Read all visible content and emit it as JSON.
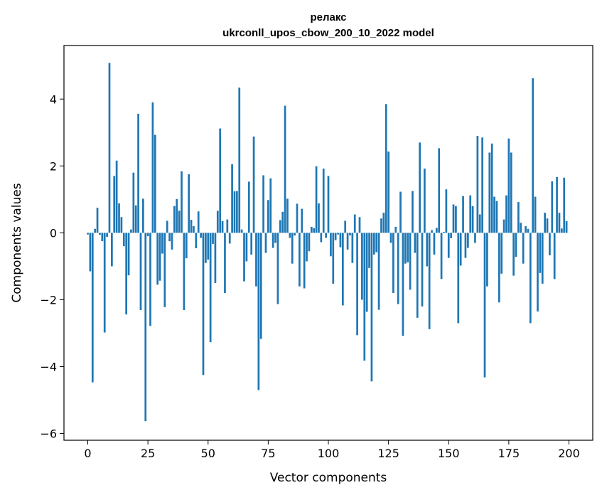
{
  "chart_data": {
    "type": "bar",
    "title": "релакс",
    "subtitle": "ukrconll_upos_cbow_200_10_2022 model",
    "xlabel": "Vector components",
    "ylabel": "Components values",
    "xlim": [
      -9.9,
      209.9
    ],
    "ylim": [
      -6.2,
      5.6
    ],
    "xticks": [
      0,
      25,
      50,
      75,
      100,
      125,
      150,
      175,
      200
    ],
    "yticks": [
      -6,
      -4,
      -2,
      0,
      2,
      4
    ],
    "xtick_labels": [
      "0",
      "25",
      "50",
      "75",
      "100",
      "125",
      "150",
      "175",
      "200"
    ],
    "ytick_labels": [
      "−6",
      "−4",
      "−2",
      "0",
      "2",
      "4"
    ],
    "bar_color": "#1f77b4",
    "grid": false,
    "x": [
      0,
      1,
      2,
      3,
      4,
      5,
      6,
      7,
      8,
      9,
      10,
      11,
      12,
      13,
      14,
      15,
      16,
      17,
      18,
      19,
      20,
      21,
      22,
      23,
      24,
      25,
      26,
      27,
      28,
      29,
      30,
      31,
      32,
      33,
      34,
      35,
      36,
      37,
      38,
      39,
      40,
      41,
      42,
      43,
      44,
      45,
      46,
      47,
      48,
      49,
      50,
      51,
      52,
      53,
      54,
      55,
      56,
      57,
      58,
      59,
      60,
      61,
      62,
      63,
      64,
      65,
      66,
      67,
      68,
      69,
      70,
      71,
      72,
      73,
      74,
      75,
      76,
      77,
      78,
      79,
      80,
      81,
      82,
      83,
      84,
      85,
      86,
      87,
      88,
      89,
      90,
      91,
      92,
      93,
      94,
      95,
      96,
      97,
      98,
      99,
      100,
      101,
      102,
      103,
      104,
      105,
      106,
      107,
      108,
      109,
      110,
      111,
      112,
      113,
      114,
      115,
      116,
      117,
      118,
      119,
      120,
      121,
      122,
      123,
      124,
      125,
      126,
      127,
      128,
      129,
      130,
      131,
      132,
      133,
      134,
      135,
      136,
      137,
      138,
      139,
      140,
      141,
      142,
      143,
      144,
      145,
      146,
      147,
      148,
      149,
      150,
      151,
      152,
      153,
      154,
      155,
      156,
      157,
      158,
      159,
      160,
      161,
      162,
      163,
      164,
      165,
      166,
      167,
      168,
      169,
      170,
      171,
      172,
      173,
      174,
      175,
      176,
      177,
      178,
      179,
      180,
      181,
      182,
      183,
      184,
      185,
      186,
      187,
      188,
      189,
      190,
      191,
      192,
      193,
      194,
      195,
      196,
      197,
      198,
      199
    ],
    "values": [
      -0.05,
      -1.15,
      -4.47,
      0.12,
      0.75,
      -0.06,
      -0.25,
      -2.98,
      -0.12,
      5.08,
      -1.0,
      1.7,
      2.16,
      0.88,
      0.47,
      -0.4,
      -2.44,
      -1.27,
      0.1,
      1.8,
      0.82,
      3.56,
      -2.31,
      1.02,
      -5.63,
      -0.1,
      -2.78,
      3.9,
      2.93,
      -1.55,
      -1.43,
      -0.62,
      -2.22,
      0.36,
      -0.25,
      -0.5,
      0.8,
      1.01,
      0.66,
      1.84,
      -2.31,
      -0.76,
      1.75,
      0.39,
      0.2,
      -0.46,
      0.64,
      -0.15,
      -4.25,
      -0.9,
      -0.8,
      -3.27,
      -0.33,
      -1.5,
      0.66,
      3.12,
      0.35,
      -1.8,
      0.4,
      -0.32,
      2.05,
      1.24,
      1.25,
      4.34,
      0.1,
      -1.45,
      -0.85,
      1.53,
      -0.65,
      2.88,
      -1.6,
      -4.7,
      -3.17,
      1.72,
      -0.6,
      0.98,
      1.63,
      -0.45,
      -0.3,
      -2.13,
      0.38,
      0.63,
      3.8,
      1.02,
      -0.15,
      -0.92,
      -0.08,
      0.87,
      -1.6,
      0.72,
      -1.66,
      -0.85,
      -0.55,
      0.18,
      0.14,
      1.99,
      0.88,
      -0.28,
      1.92,
      -0.15,
      1.7,
      -0.7,
      -1.52,
      -0.22,
      -0.05,
      -0.43,
      -2.17,
      0.36,
      -0.5,
      -0.08,
      -0.9,
      0.55,
      -3.06,
      0.47,
      -2.0,
      -3.82,
      -2.36,
      -1.05,
      -4.44,
      -0.65,
      -0.58,
      -2.3,
      0.43,
      0.6,
      3.85,
      2.43,
      -0.3,
      -1.8,
      0.18,
      -2.13,
      1.23,
      -3.08,
      -0.92,
      -0.88,
      -1.7,
      1.25,
      -0.6,
      -2.54,
      2.7,
      -2.2,
      1.92,
      -1.0,
      -2.88,
      0.08,
      -0.65,
      0.15,
      2.53,
      -1.38,
      0.03,
      1.3,
      -0.75,
      -0.16,
      0.85,
      0.8,
      -2.7,
      -0.98,
      1.1,
      -0.75,
      -0.45,
      1.12,
      0.8,
      -0.3,
      2.9,
      0.55,
      2.85,
      -4.32,
      -1.6,
      2.4,
      2.67,
      1.08,
      0.95,
      -2.08,
      -1.22,
      0.4,
      1.12,
      2.82,
      2.4,
      -1.28,
      -0.72,
      0.92,
      0.3,
      -0.92,
      0.2,
      0.12,
      -2.7,
      4.62,
      1.08,
      -2.35,
      -1.2,
      -1.52,
      0.6,
      0.43,
      -0.67,
      1.54,
      -1.38,
      1.67,
      0.6,
      0.13,
      1.65,
      0.35
    ]
  }
}
